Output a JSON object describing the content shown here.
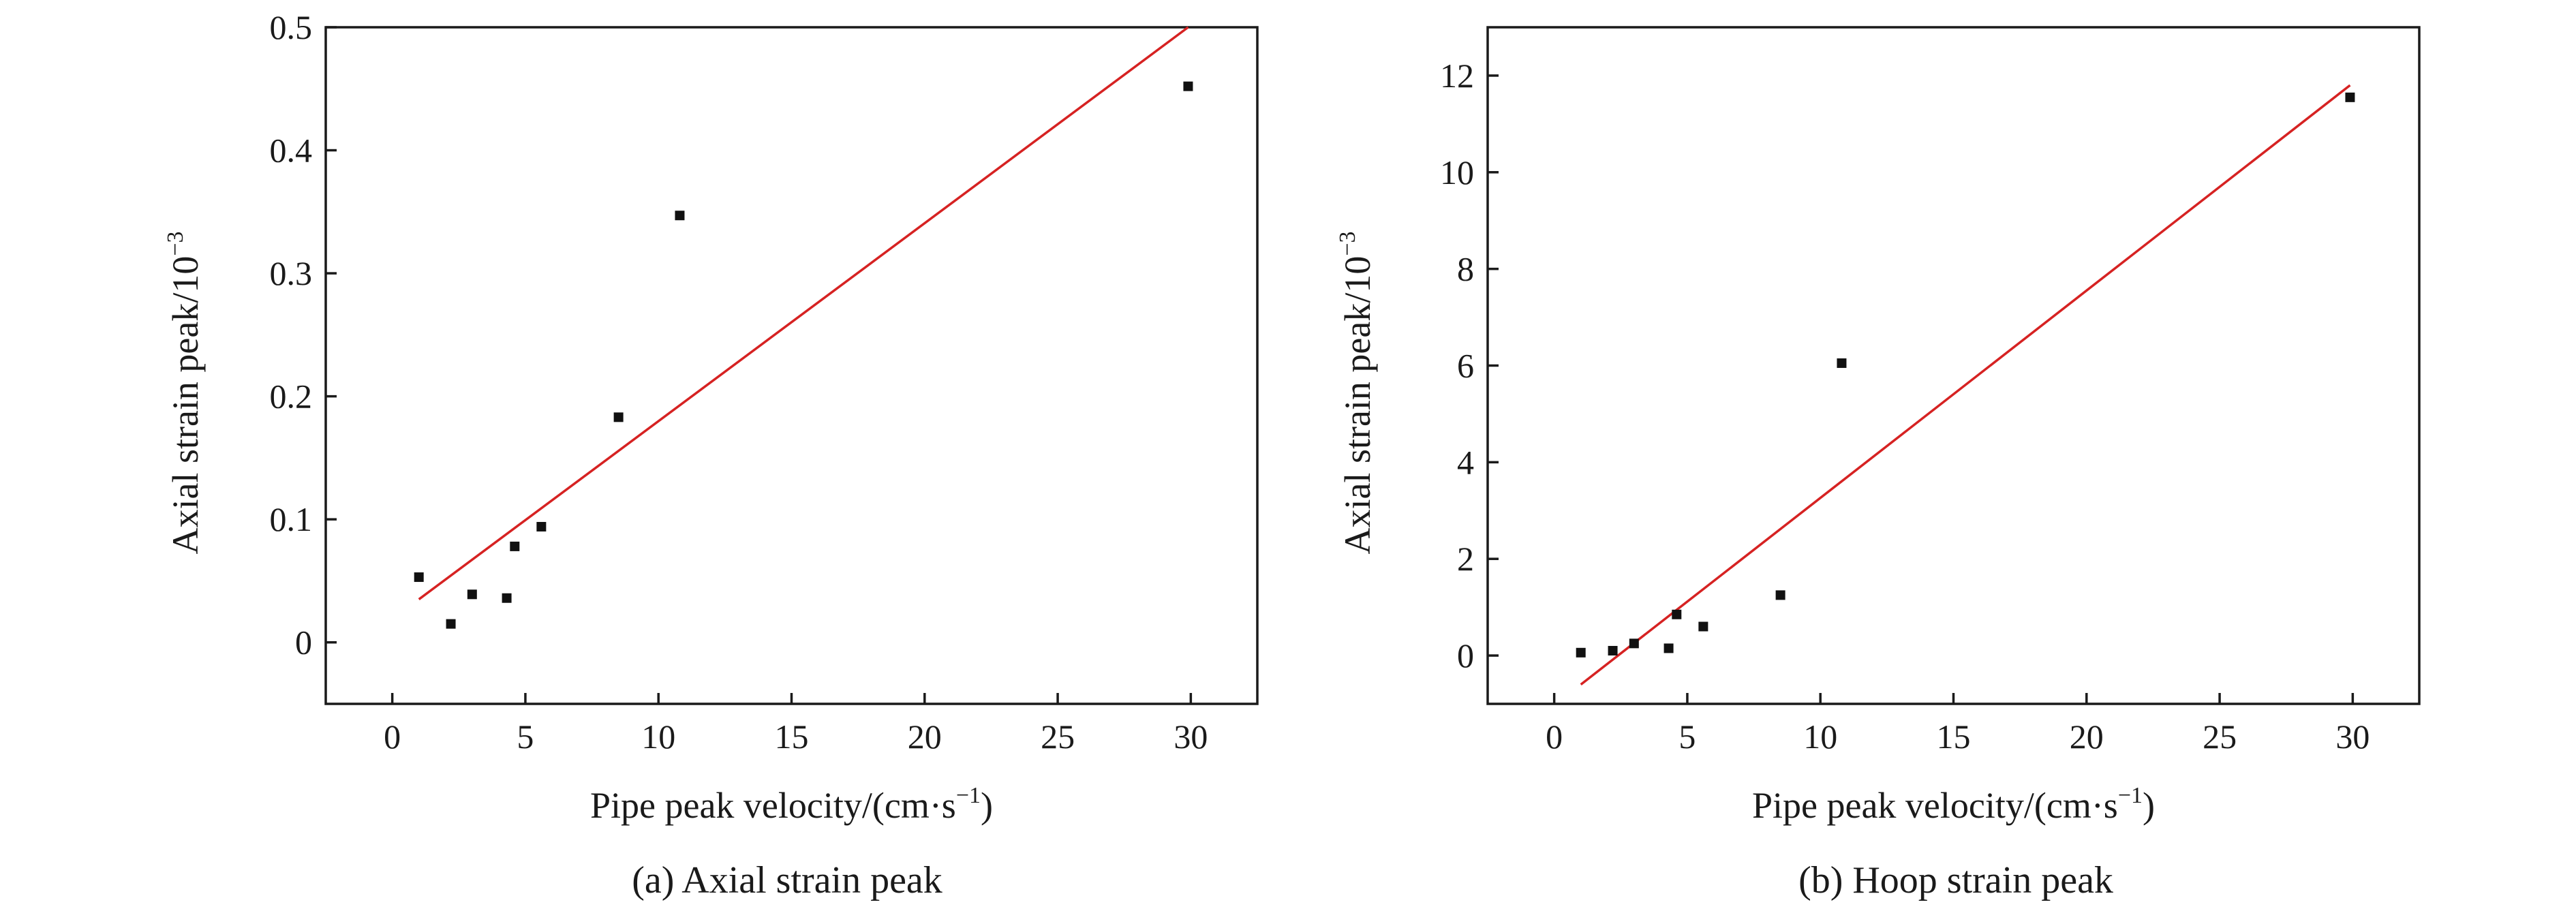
{
  "chart_data": [
    {
      "type": "scatter",
      "caption": "(a) Axial strain peak",
      "xlabel": "Pipe peak velocity/(cm·s",
      "xlabel_sup": "−1",
      "xlabel_tail": ")",
      "ylabel": "Axial strain peak/10",
      "ylabel_sup": "−3",
      "xlim": [
        -2.5,
        32.5
      ],
      "ylim": [
        -0.05,
        0.5
      ],
      "xticks": [
        0,
        5,
        10,
        15,
        20,
        25,
        30
      ],
      "yticks": [
        0,
        0.1,
        0.2,
        0.3,
        0.4,
        0.5
      ],
      "ytick_labels": [
        "0",
        "0.1",
        "0.2",
        "0.3",
        "0.4",
        "0.5"
      ],
      "grid": false,
      "series": [
        {
          "x": [
            1.0,
            2.2,
            3.0,
            4.3,
            4.6,
            5.6,
            8.5,
            10.8,
            29.9
          ],
          "y": [
            0.053,
            0.015,
            0.039,
            0.036,
            0.078,
            0.094,
            0.183,
            0.347,
            0.452
          ],
          "color": "#111111"
        }
      ],
      "fit_line": {
        "x": [
          1.0,
          29.9
        ],
        "y": [
          0.035,
          0.5
        ],
        "color": "#d62222"
      }
    },
    {
      "type": "scatter",
      "caption": "(b) Hoop strain peak",
      "xlabel": "Pipe peak velocity/(cm·s",
      "xlabel_sup": "−1",
      "xlabel_tail": ")",
      "ylabel": "Axial strain peak/10",
      "ylabel_sup": "−3",
      "xlim": [
        -2.5,
        32.5
      ],
      "ylim": [
        -1.0,
        13.0
      ],
      "xticks": [
        0,
        5,
        10,
        15,
        20,
        25,
        30
      ],
      "yticks": [
        0,
        2,
        4,
        6,
        8,
        10,
        12
      ],
      "ytick_labels": [
        "0",
        "2",
        "4",
        "6",
        "8",
        "10",
        "12"
      ],
      "grid": false,
      "series": [
        {
          "x": [
            1.0,
            2.2,
            3.0,
            4.3,
            4.6,
            5.6,
            8.5,
            10.8,
            29.9
          ],
          "y": [
            0.06,
            0.1,
            0.25,
            0.15,
            0.85,
            0.6,
            1.25,
            6.05,
            11.55
          ],
          "color": "#111111"
        }
      ],
      "fit_line": {
        "x": [
          1.0,
          29.9
        ],
        "y": [
          -0.6,
          11.8
        ],
        "color": "#d62222"
      }
    }
  ]
}
